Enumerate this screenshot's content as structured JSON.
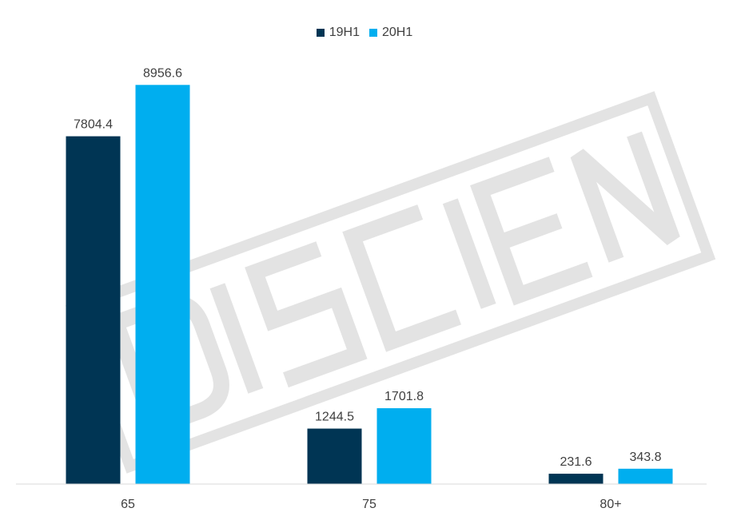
{
  "chart_data": {
    "type": "bar",
    "categories": [
      "65",
      "75",
      "80+"
    ],
    "series": [
      {
        "name": "19H1",
        "color": "#003554",
        "values": [
          7804.4,
          1244.5,
          231.6
        ]
      },
      {
        "name": "20H1",
        "color": "#00AEEF",
        "values": [
          8956.6,
          1701.8,
          343.8
        ]
      }
    ],
    "title": "",
    "xlabel": "",
    "ylabel": "",
    "ylim": [
      0,
      9500
    ],
    "grid": false,
    "legend_position": "top-center",
    "value_labels": true
  },
  "watermark": {
    "logo_text": "DISCIEN",
    "color": "#e2e2e2"
  }
}
